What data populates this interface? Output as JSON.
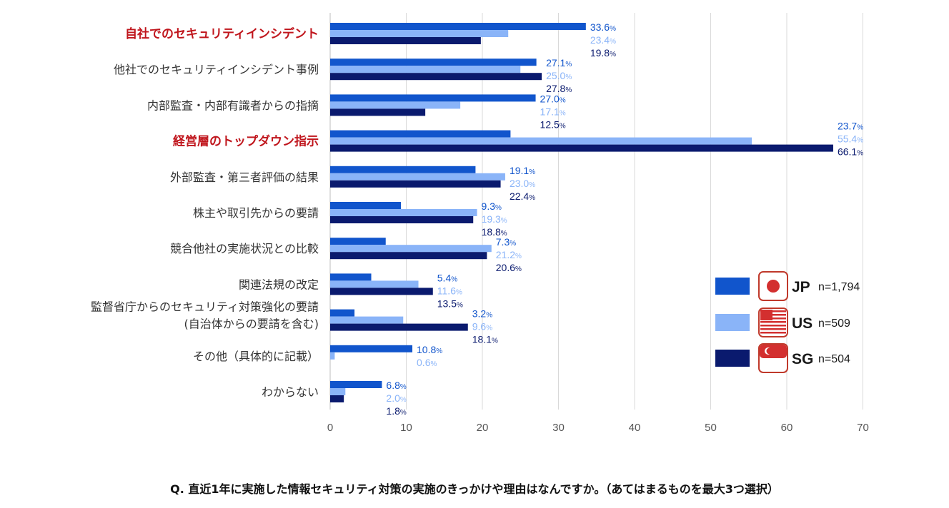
{
  "chart_data": {
    "type": "bar",
    "orientation": "horizontal",
    "xlim": [
      0,
      70
    ],
    "xticks": [
      "0",
      "10",
      "20",
      "30",
      "40",
      "50",
      "60",
      "70"
    ],
    "grid": true,
    "legend_position": "right",
    "categories": [
      "自社でのセキュリティインシデント",
      "他社でのセキュリティインシデント事例",
      "内部監査・内部有識者からの指摘",
      "経営層のトップダウン指示",
      "外部監査・第三者評価の結果",
      "株主や取引先からの要請",
      "競合他社の実施状況との比較",
      "関連法規の改定",
      [
        "監督省庁からのセキュリティ対策強化の要請",
        "(自治体からの要請を含む)"
      ],
      "その他（具体的に記載）",
      "わからない"
    ],
    "highlighted_categories": [
      0,
      3
    ],
    "series": [
      {
        "name": "JP",
        "n": "n=1,794",
        "color": "#1155cc",
        "values": [
          33.6,
          27.1,
          27.0,
          23.7,
          19.1,
          9.3,
          7.3,
          5.4,
          3.2,
          10.8,
          6.8
        ],
        "labels": [
          "33.6",
          "27.1",
          "27.0",
          "23.7",
          "19.1",
          "9.3",
          "7.3",
          "5.4",
          "3.2",
          "10.8",
          "6.8"
        ]
      },
      {
        "name": "US",
        "n": "n=509",
        "color": "#8ab4f8",
        "values": [
          23.4,
          25.0,
          17.1,
          55.4,
          23.0,
          19.3,
          21.2,
          11.6,
          9.6,
          0.6,
          2.0
        ],
        "labels": [
          "23.4",
          "25.0",
          "17.1",
          "55.4",
          "23.0",
          "19.3",
          "21.2",
          "11.6",
          "9.6",
          "0.6",
          "2.0"
        ]
      },
      {
        "name": "SG",
        "n": "n=504",
        "color": "#0a1a6e",
        "values": [
          19.8,
          27.8,
          12.5,
          66.1,
          22.4,
          18.8,
          20.6,
          13.5,
          18.1,
          null,
          1.8
        ],
        "labels": [
          "19.8",
          "27.8",
          "12.5",
          "66.1",
          "22.4",
          "18.8",
          "20.6",
          "13.5",
          "18.1",
          null,
          "1.8"
        ]
      }
    ],
    "percent_suffix": "%",
    "footnote": "Q. 直近1年に実施した情報セキュリティ対策の実施のきっかけや理由はなんですか。（あてはまるものを最大3つ選択）"
  },
  "legend_icons": {
    "JP": "japan-flag-icon",
    "US": "us-flag-icon",
    "SG": "singapore-flag-icon"
  },
  "colors": {
    "highlight_text": "#c0161d",
    "icon_border": "#c0392b",
    "icon_red": "#d32f2f",
    "grid": "#d9d9d9"
  }
}
